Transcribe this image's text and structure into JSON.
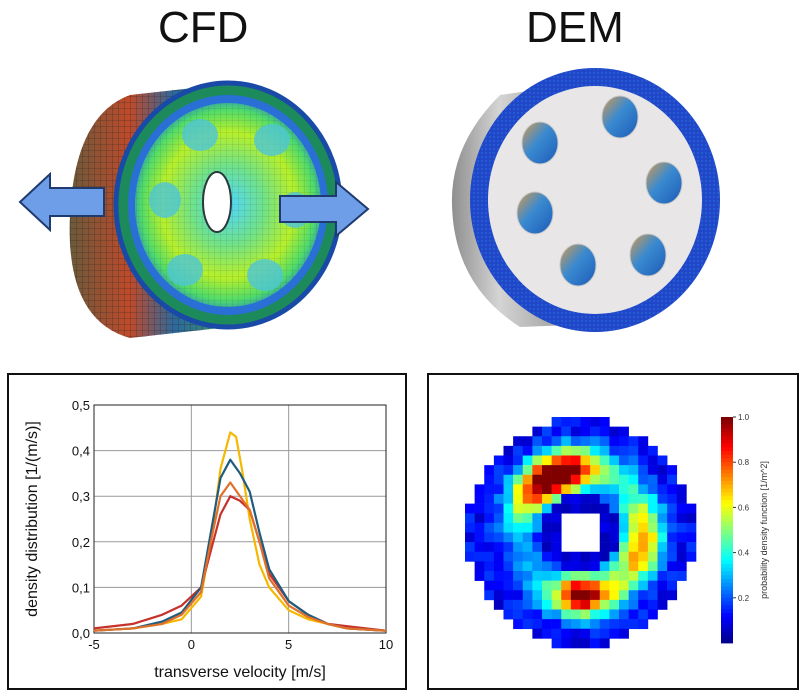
{
  "headings": {
    "left": "CFD",
    "right": "DEM"
  },
  "colors": {
    "arrow_fill": "#6f9ee8",
    "arrow_stroke": "#1e3a6e",
    "disc_blue": "#1f46c8",
    "face_white": "#e8e6e6",
    "series": [
      "#f5b800",
      "#c8302a",
      "#1f5c80",
      "#e0702a"
    ]
  },
  "icons": [
    "left-arrow-icon",
    "right-arrow-icon"
  ],
  "chart_data": [
    {
      "type": "line",
      "xlabel": "transverse velocity [m/s]",
      "ylabel": "density distribution [1/(m/s)]",
      "xlim": [
        -5,
        10
      ],
      "ylim": [
        0,
        0.5
      ],
      "xticks": [
        "-5",
        "0",
        "5",
        "10"
      ],
      "yticks": [
        "0,0",
        "0,1",
        "0,2",
        "0,3",
        "0,4",
        "0,5"
      ],
      "grid": true,
      "series": [
        {
          "color": "#f5b800",
          "x": [
            -5,
            -3,
            -1.5,
            -0.5,
            0.5,
            1,
            1.5,
            2,
            2.3,
            2.6,
            3,
            3.5,
            4,
            5,
            6,
            7,
            8,
            10
          ],
          "values": [
            0.005,
            0.01,
            0.02,
            0.03,
            0.08,
            0.2,
            0.36,
            0.44,
            0.43,
            0.36,
            0.25,
            0.15,
            0.1,
            0.05,
            0.03,
            0.02,
            0.01,
            0.005
          ]
        },
        {
          "color": "#c8302a",
          "x": [
            -5,
            -3,
            -1.5,
            -0.5,
            0.5,
            1,
            1.5,
            2,
            2.5,
            3,
            3.5,
            4,
            5,
            6,
            7,
            8,
            10
          ],
          "values": [
            0.01,
            0.02,
            0.04,
            0.06,
            0.1,
            0.18,
            0.26,
            0.3,
            0.29,
            0.27,
            0.2,
            0.13,
            0.07,
            0.04,
            0.02,
            0.015,
            0.005
          ]
        },
        {
          "color": "#1f5c80",
          "x": [
            -5,
            -3,
            -1.5,
            -0.5,
            0.5,
            1,
            1.5,
            2,
            2.5,
            3,
            3.5,
            4,
            5,
            6,
            7,
            8,
            10
          ],
          "values": [
            0.005,
            0.01,
            0.025,
            0.045,
            0.1,
            0.22,
            0.34,
            0.38,
            0.35,
            0.31,
            0.22,
            0.14,
            0.07,
            0.04,
            0.02,
            0.01,
            0.005
          ]
        },
        {
          "color": "#e0702a",
          "x": [
            -5,
            -3,
            -1.5,
            -0.5,
            0.5,
            1,
            1.5,
            2,
            2.5,
            3,
            3.5,
            4,
            5,
            6,
            7,
            8,
            10
          ],
          "values": [
            0.005,
            0.01,
            0.02,
            0.04,
            0.09,
            0.2,
            0.3,
            0.33,
            0.3,
            0.27,
            0.2,
            0.12,
            0.06,
            0.035,
            0.02,
            0.01,
            0.005
          ]
        }
      ]
    },
    {
      "type": "heatmap",
      "colorbar_label": "probability density function [1/m^2]",
      "colorbar_ticks": [
        "0.2",
        "0.4",
        "0.6",
        "0.8",
        "1.0"
      ],
      "colorbar_tick_values": [
        0.2,
        0.4,
        0.6,
        0.8,
        1.0
      ],
      "grid_size": 24,
      "colormap": "jet"
    }
  ]
}
